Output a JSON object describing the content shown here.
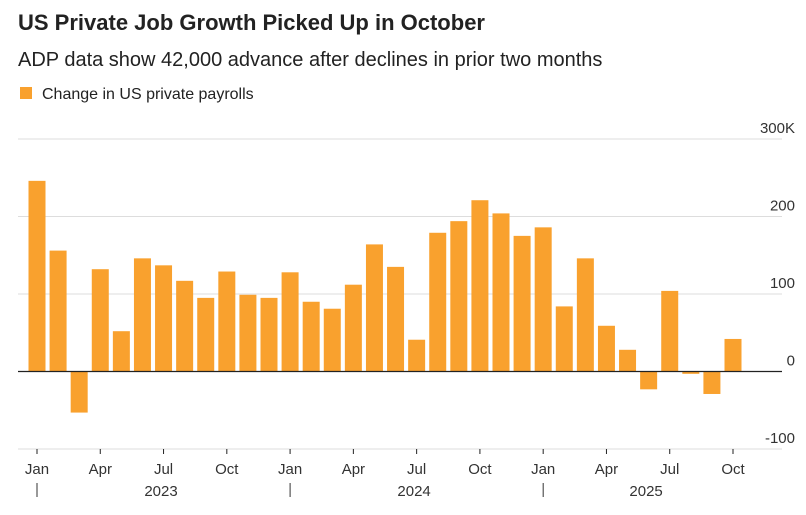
{
  "chart_data": {
    "type": "bar",
    "title": "US Private Job Growth Picked Up in October",
    "subtitle": "ADP data show 42,000 advance after declines in prior two months",
    "series": [
      {
        "name": "Change in US private payrolls",
        "color": "#f9a12e",
        "values": [
          246,
          156,
          -53,
          132,
          52,
          146,
          137,
          117,
          95,
          129,
          99,
          95,
          128,
          90,
          81,
          112,
          164,
          135,
          41,
          179,
          194,
          221,
          204,
          175,
          186,
          84,
          146,
          59,
          28,
          -23,
          104,
          -3,
          -29,
          42
        ]
      }
    ],
    "categories": [
      "Jan",
      null,
      null,
      "Apr",
      null,
      null,
      "Jul",
      null,
      null,
      "Oct",
      null,
      null,
      "Jan",
      null,
      null,
      "Apr",
      null,
      null,
      "Jul",
      null,
      null,
      "Oct",
      null,
      null,
      "Jan",
      null,
      null,
      "Apr",
      null,
      null,
      "Jul",
      null,
      null,
      "Oct"
    ],
    "years": [
      "2023",
      "2024",
      "2025"
    ],
    "ylim": [
      -100,
      300
    ],
    "yticks": [
      -100,
      0,
      100,
      200,
      {
        "value": 300,
        "label": "300K"
      }
    ],
    "grid": true
  }
}
